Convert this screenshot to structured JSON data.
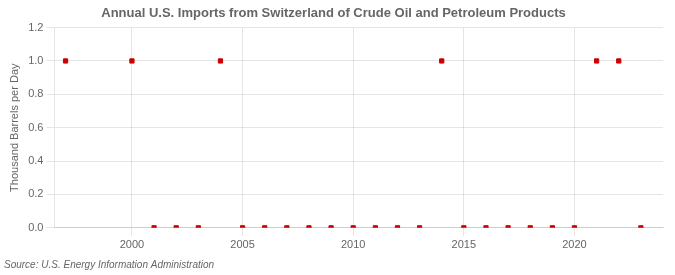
{
  "chart_data": {
    "type": "scatter",
    "title": "Annual U.S. Imports from Switzerland of Crude Oil and Petroleum Products",
    "ylabel": "Thousand Barrels per Day",
    "annotation": "Source: U.S. Energy Information Administration",
    "x": [
      1997,
      2000,
      2004,
      2014,
      2021,
      2022,
      2001,
      2002,
      2003,
      2005,
      2006,
      2007,
      2008,
      2009,
      2010,
      2011,
      2012,
      2013,
      2015,
      2016,
      2017,
      2018,
      2019,
      2020,
      2023
    ],
    "values": [
      1.0,
      1.0,
      1.0,
      1.0,
      1.0,
      1.0,
      0.0,
      0.0,
      0.0,
      0.0,
      0.0,
      0.0,
      0.0,
      0.0,
      0.0,
      0.0,
      0.0,
      0.0,
      0.0,
      0.0,
      0.0,
      0.0,
      0.0,
      0.0,
      0.0
    ],
    "color": "#cc0000",
    "marker": "square",
    "xlim": [
      1996.5,
      2024
    ],
    "xticks": [
      2000,
      2005,
      2010,
      2015,
      2020
    ],
    "ylim": [
      0,
      1.2
    ],
    "yticks": [
      {
        "value": 0,
        "label": "0.0"
      },
      0.2,
      0.4,
      0.6,
      0.8,
      {
        "value": 1.0,
        "label": "1.0"
      },
      1.2
    ],
    "grid": true
  }
}
